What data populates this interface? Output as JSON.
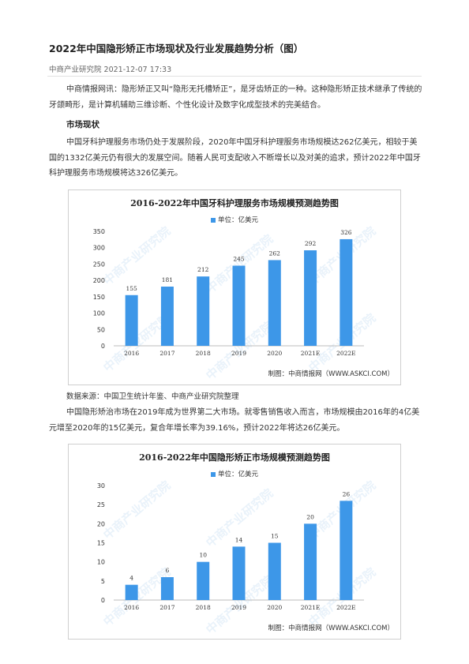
{
  "article": {
    "title": "2022年中国隐形矫正市场现状及行业发展趋势分析（图）",
    "meta": "中商产业研究院 2021-12-07 17:33",
    "intro": "中商情报网讯：隐形矫正又叫“隐形无托槽矫正”，是牙齿矫正的一种。这种隐形矫正技术继承了传统的牙颌畸形，是计算机辅助三维诊断、个性化设计及数字化成型技术的完美结合。",
    "section_title": "市场现状",
    "para1": "中国牙科护理服务市场仍处于发展阶段，2020年中国牙科护理服务市场规模达262亿美元，相较于美国的1332亿美元仍有很大的发展空间。随着人民可支配收入不断增长以及对美的追求，预计2022年中国牙科护理服务市场规模将达326亿美元。",
    "source": "数据来源：中国卫生统计年鉴、中商产业研究院整理",
    "para2": "中国隐形矫治市场在2019年成为世界第二大市场。就零售销售收入而言，市场规模由2016年的4亿美元增至2020年的15亿美元，复合年增长率为39.16%，预计2022年将达26亿美元。"
  },
  "watermark": "中商产业研究院",
  "colors": {
    "bar": "#3d97e8"
  },
  "chart_data": [
    {
      "type": "bar",
      "title": "2016-2022年中国牙科护理服务市场规模预测趋势图",
      "legend": "单位：亿美元",
      "footer": "制图：中商情报网（WWW.ASKCI.COM）",
      "categories": [
        "2016",
        "2017",
        "2018",
        "2019",
        "2020",
        "2021E",
        "2022E"
      ],
      "values": [
        155,
        181,
        212,
        245,
        262,
        292,
        326
      ],
      "ylim": [
        0,
        350
      ],
      "yticks": [
        0,
        50,
        100,
        150,
        200,
        250,
        300,
        350
      ]
    },
    {
      "type": "bar",
      "title": "2016-2022年中国隐形矫正市场规模预测趋势图",
      "legend": "单位：亿美元",
      "footer": "制图：中商情报网（WWW.ASKCI.COM）",
      "categories": [
        "2016",
        "2017",
        "2018",
        "2019",
        "2020",
        "2021E",
        "2022E"
      ],
      "values": [
        4,
        6,
        10,
        14,
        15,
        20,
        26
      ],
      "ylim": [
        0,
        30
      ],
      "yticks": [
        0,
        5,
        10,
        15,
        20,
        25,
        30
      ]
    }
  ]
}
